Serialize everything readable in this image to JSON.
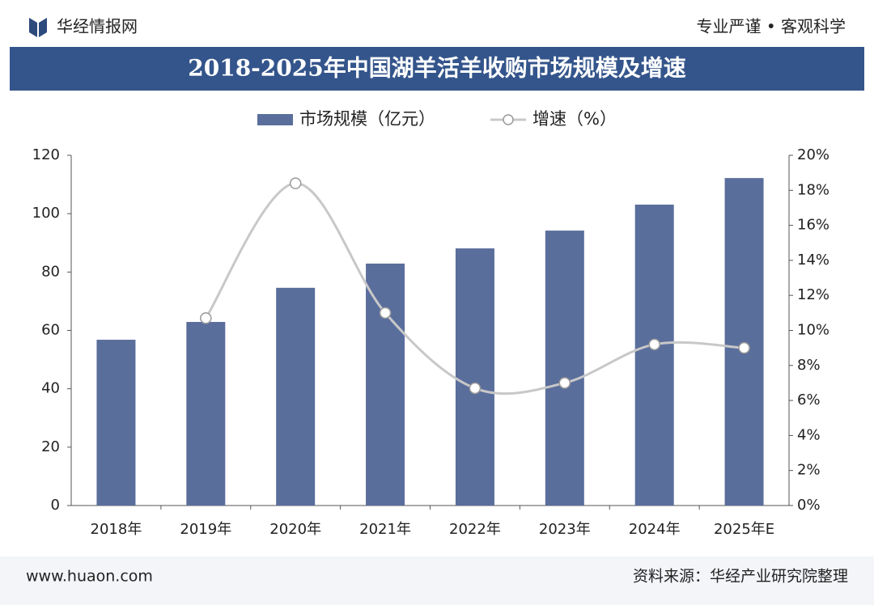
{
  "header": {
    "brand": "华经情报网",
    "slogan": "专业严谨 • 客观科学"
  },
  "footer": {
    "website": "www.huaon.com",
    "source": "资料来源：华经产业研究院整理"
  },
  "chart_data": {
    "type": "bar_line",
    "title": "2018-2025年中国湖羊活羊收购市场规模及增速",
    "categories": [
      "2018年",
      "2019年",
      "2020年",
      "2021年",
      "2022年",
      "2023年",
      "2024年",
      "2025年E"
    ],
    "series": [
      {
        "name": "市场规模（亿元）",
        "color": "#5a6e9c",
        "type": "bar",
        "values": [
          56.8,
          62.9,
          74.6,
          82.9,
          88.1,
          94.2,
          103.1,
          112.2
        ]
      },
      {
        "name": "增速（%）",
        "color": "#c8c8c8",
        "type": "line",
        "axis": "y2",
        "values": [
          null,
          10.7,
          18.4,
          11.0,
          6.7,
          7.0,
          9.2,
          9.0
        ]
      }
    ],
    "ylim": [
      0,
      120
    ],
    "yticks": [
      0,
      20,
      40,
      60,
      80,
      100,
      120
    ],
    "y2lim": [
      0,
      20
    ],
    "y2ticks": [
      {
        "value": 0,
        "label": "0%"
      },
      {
        "value": 2,
        "label": "2%"
      },
      {
        "value": 4,
        "label": "4%"
      },
      {
        "value": 6,
        "label": "6%"
      },
      {
        "value": 8,
        "label": "8%"
      },
      {
        "value": 10,
        "label": "10%"
      },
      {
        "value": 12,
        "label": "12%"
      },
      {
        "value": 14,
        "label": "14%"
      },
      {
        "value": 16,
        "label": "16%"
      },
      {
        "value": 18,
        "label": "18%"
      },
      {
        "value": 20,
        "label": "20%"
      }
    ],
    "legend": "top",
    "grid": false
  }
}
